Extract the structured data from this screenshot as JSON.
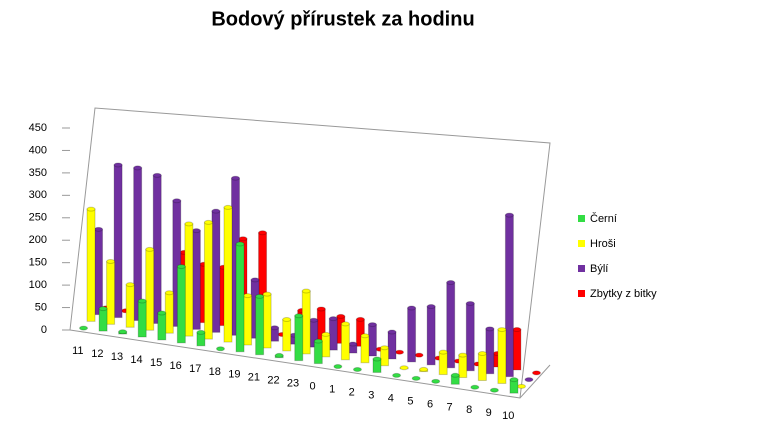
{
  "chart_data": {
    "type": "bar3d",
    "title": "Bodový přírustek za hodinu",
    "categories": [
      "11",
      "12",
      "13",
      "14",
      "15",
      "16",
      "17",
      "18",
      "19",
      "21",
      "22",
      "23",
      "0",
      "1",
      "2",
      "3",
      "4",
      "5",
      "6",
      "7",
      "8",
      "9",
      "10"
    ],
    "series": [
      {
        "name": "Černí",
        "color": "#33dd44",
        "values": [
          0,
          50,
          5,
          80,
          60,
          170,
          30,
          0,
          240,
          130,
          5,
          100,
          50,
          0,
          0,
          30,
          0,
          0,
          0,
          20,
          0,
          0,
          30
        ]
      },
      {
        "name": "Hroši",
        "color": "#ffff00",
        "values": [
          250,
          140,
          95,
          180,
          90,
          250,
          260,
          300,
          110,
          120,
          70,
          140,
          50,
          80,
          60,
          40,
          2,
          5,
          50,
          50,
          60,
          120,
          0
        ]
      },
      {
        "name": "Býlí",
        "color": "#7030a0",
        "values": [
          190,
          340,
          340,
          330,
          280,
          220,
          270,
          350,
          130,
          30,
          20,
          60,
          70,
          20,
          70,
          60,
          120,
          130,
          190,
          150,
          100,
          360,
          0
        ]
      },
      {
        "name": "Zbytky z bitky",
        "color": "#ff0000",
        "values": [
          0,
          0,
          0,
          0,
          150,
          130,
          130,
          200,
          220,
          0,
          60,
          70,
          60,
          60,
          0,
          0,
          0,
          0,
          0,
          0,
          30,
          90,
          0
        ]
      }
    ],
    "ylim": [
      0,
      450
    ],
    "yticks": [
      0,
      50,
      100,
      150,
      200,
      250,
      300,
      350,
      400,
      450
    ],
    "legend": "right"
  }
}
